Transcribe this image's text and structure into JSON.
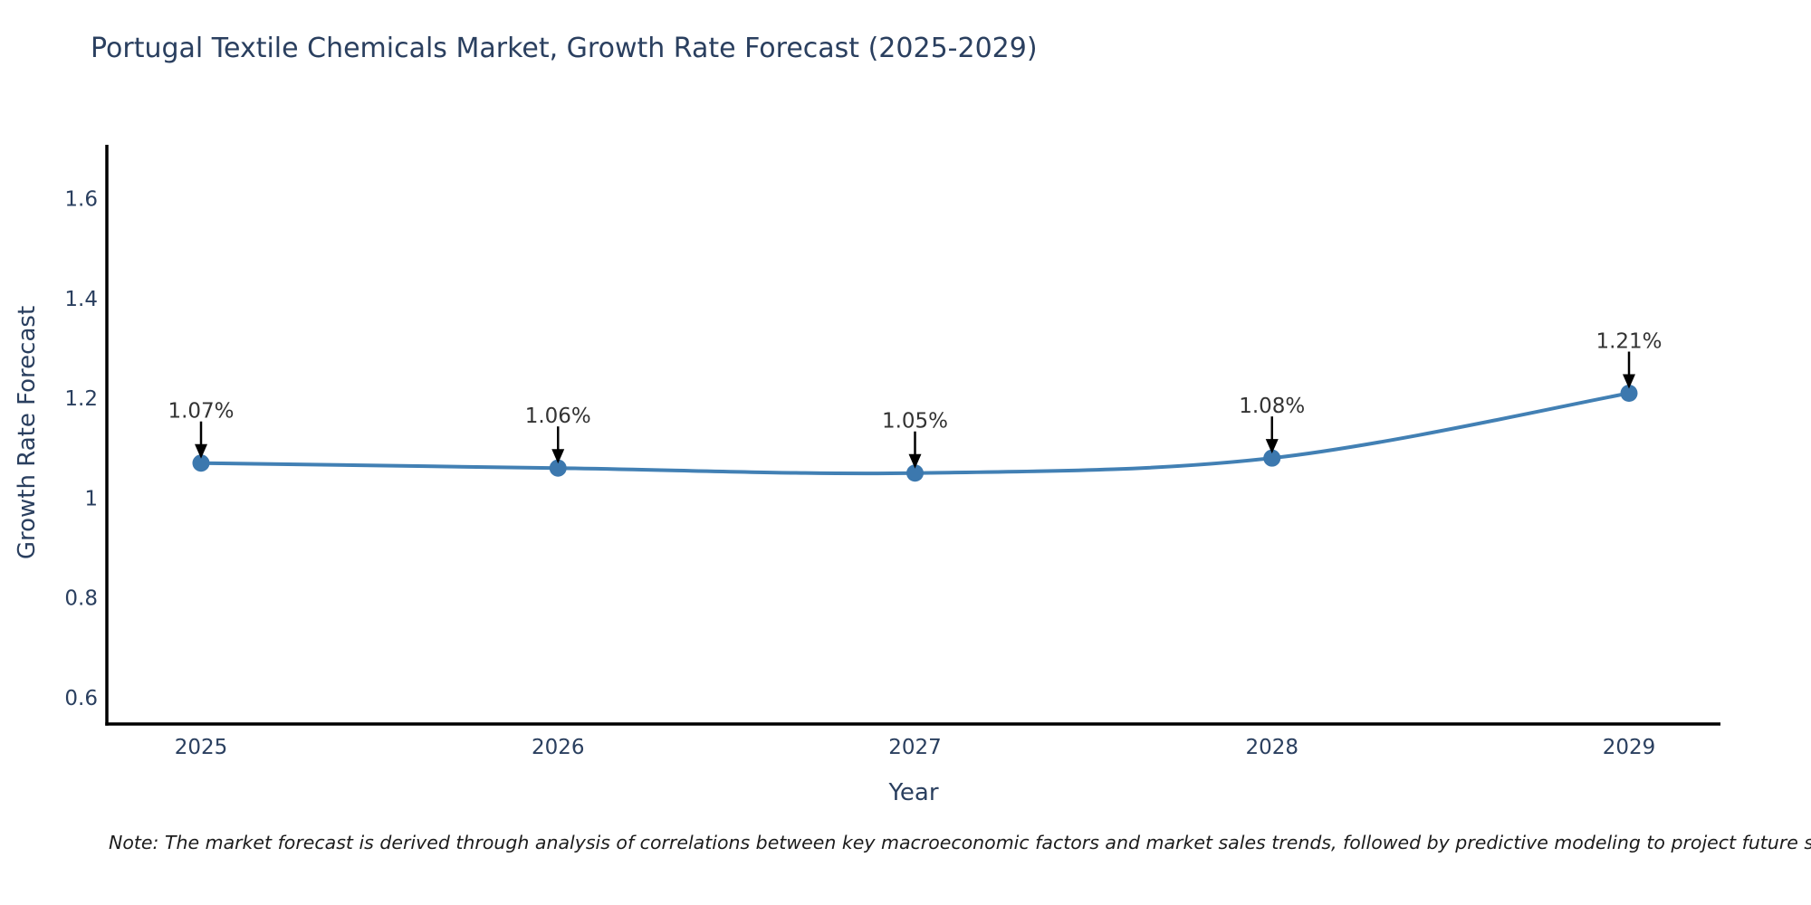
{
  "title": "Portugal Textile Chemicals Market, Growth Rate Forecast (2025-2029)",
  "note": "Note: The market forecast is derived through analysis of correlations between key macroeconomic factors and market sales trends, followed by predictive modeling to project future sales",
  "chart_data": {
    "type": "line",
    "title": "Portugal Textile Chemicals Market, Growth Rate Forecast (2025-2029)",
    "xlabel": "Year",
    "ylabel": "Growth Rate Forecast",
    "x": [
      2025,
      2026,
      2027,
      2028,
      2029
    ],
    "categories": [
      "2025",
      "2026",
      "2027",
      "2028",
      "2029"
    ],
    "values": [
      1.07,
      1.06,
      1.05,
      1.08,
      1.21
    ],
    "point_labels": [
      "1.07%",
      "1.06%",
      "1.05%",
      "1.08%",
      "1.21%"
    ],
    "yticks": [
      0.6,
      0.8,
      1,
      1.2,
      1.4,
      1.6
    ],
    "ytick_labels": [
      "0.6",
      "0.8",
      "1",
      "1.2",
      "1.4",
      "1.6"
    ],
    "ylim": [
      0.547,
      1.708
    ],
    "grid": false,
    "legend": "none",
    "line_shape": "spline",
    "colors": {
      "line": "#4280b4",
      "marker": "#3c78ae",
      "axis_line": "#000000",
      "tick_text": "#2a3f5f",
      "title_text": "#2a3f5f",
      "annotation_text": "#333333",
      "annotation_arrow": "#000000",
      "note_text": "#1c1c1c",
      "background": "#ffffff"
    }
  }
}
